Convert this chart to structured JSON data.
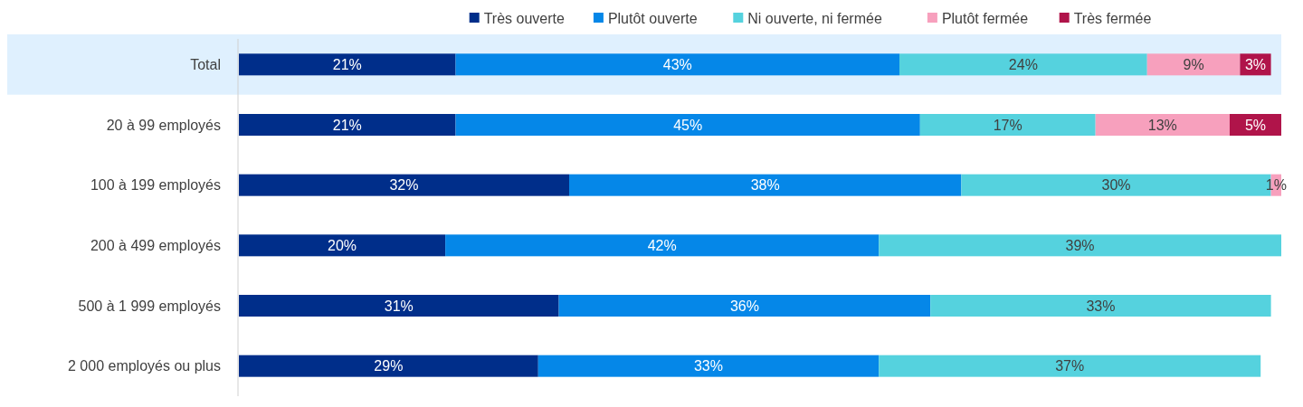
{
  "chart_data": {
    "type": "bar",
    "orientation": "horizontal",
    "stacked": true,
    "legend": "top",
    "tick_labels": "y",
    "categories": [
      "Total",
      "20 à 99 employés",
      "100 à 199 employés",
      "200 à 499 employés",
      "500 à 1 999 employés",
      "2 000 employés ou plus"
    ],
    "bands": [
      {
        "axis": "y",
        "from": "Total",
        "to": "Total",
        "color": "#dff0fe"
      }
    ],
    "series": [
      {
        "name": "Très ouverte",
        "color": "#002e8a",
        "values": [
          21,
          21,
          32,
          20,
          31,
          29
        ],
        "value_labels": [
          "21%",
          "21%",
          "32%",
          "20%",
          "31%",
          "29%"
        ]
      },
      {
        "name": "Plutôt ouverte",
        "color": "#0587e8",
        "values": [
          43,
          45,
          38,
          42,
          36,
          33
        ],
        "value_labels": [
          "43%",
          "45%",
          "38%",
          "42%",
          "36%",
          "33%"
        ]
      },
      {
        "name": "Ni ouverte, ni fermée",
        "color": "#55d2de",
        "values": [
          24,
          17,
          30,
          39,
          33,
          37
        ],
        "value_labels": [
          "24%",
          "17%",
          "30%",
          "39%",
          "33%",
          "37%"
        ]
      },
      {
        "name": "Plutôt fermée",
        "color": "#f7a0bd",
        "values": [
          9,
          13,
          1,
          null,
          null,
          null
        ],
        "value_labels": [
          "9%",
          "13%",
          "1%",
          null,
          null,
          null
        ]
      },
      {
        "name": "Très fermée",
        "color": "#b0144a",
        "values": [
          3,
          5,
          null,
          null,
          null,
          null
        ],
        "value_labels": [
          "3%",
          "5%",
          null,
          null,
          null,
          null
        ]
      }
    ]
  }
}
